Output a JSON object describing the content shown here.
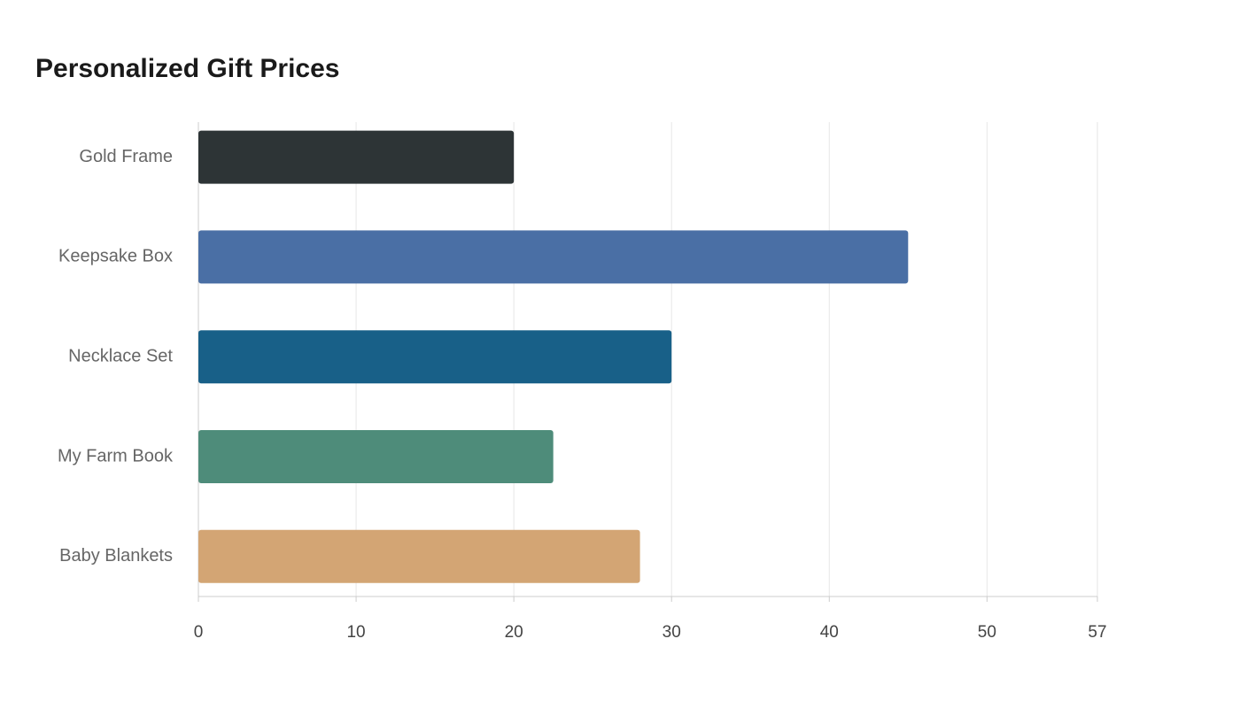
{
  "chart_data": {
    "type": "hbar",
    "title": "Personalized Gift Prices",
    "categories": [
      "Gold Frame",
      "Keepsake Box",
      "Necklace Set",
      "My Farm Book",
      "Baby Blankets"
    ],
    "values": [
      20,
      45,
      30,
      22.5,
      28
    ],
    "colors": [
      "#2d3436",
      "#4a6fa5",
      "#186088",
      "#4e8c7a",
      "#d3a574"
    ],
    "xlim": [
      0,
      57
    ],
    "xticks": [
      0,
      10,
      20,
      30,
      40,
      50,
      57
    ],
    "grid": true
  }
}
